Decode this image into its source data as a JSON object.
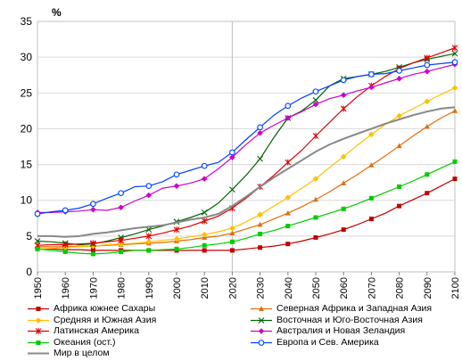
{
  "chart_data": {
    "type": "line",
    "title": "",
    "xlabel": "",
    "ylabel": "%",
    "ylim": [
      0,
      35
    ],
    "xlim": [
      1950,
      2100
    ],
    "yticks": [
      "0",
      "5",
      "10",
      "15",
      "20",
      "25",
      "30",
      "35"
    ],
    "xticks": [
      "1950",
      "1960",
      "1970",
      "1980",
      "1990",
      "2000",
      "2010",
      "2020",
      "2030",
      "2040",
      "2050",
      "2060",
      "2070",
      "2080",
      "2090",
      "2100"
    ],
    "grid": true,
    "reference_line_x": 2020,
    "legend_position": "bottom",
    "x": [
      1950,
      1955,
      1960,
      1965,
      1970,
      1975,
      1980,
      1985,
      1990,
      1995,
      2000,
      2005,
      2010,
      2015,
      2020,
      2025,
      2030,
      2035,
      2040,
      2045,
      2050,
      2055,
      2060,
      2065,
      2070,
      2075,
      2080,
      2085,
      2090,
      2095,
      2100
    ],
    "series": [
      {
        "name": "Африка южнее Сахары",
        "color": "#c00000",
        "marker": "square",
        "values": [
          3.2,
          3.2,
          3.1,
          3.1,
          3.0,
          3.0,
          3.0,
          3.0,
          3.0,
          3.0,
          3.0,
          3.0,
          3.0,
          3.0,
          3.0,
          3.2,
          3.4,
          3.6,
          3.9,
          4.3,
          4.8,
          5.3,
          5.9,
          6.6,
          7.4,
          8.2,
          9.2,
          10.1,
          11.0,
          12.0,
          13.0
        ]
      },
      {
        "name": "Северная Африка и Западная Азия",
        "color": "#e46c0a",
        "marker": "triangle",
        "values": [
          3.5,
          3.5,
          3.5,
          3.6,
          3.6,
          3.7,
          3.8,
          3.9,
          4.0,
          4.1,
          4.3,
          4.5,
          4.8,
          5.0,
          5.4,
          6.0,
          6.6,
          7.4,
          8.2,
          9.1,
          10.1,
          11.2,
          12.4,
          13.6,
          14.9,
          16.2,
          17.6,
          19.0,
          20.3,
          21.5,
          22.5
        ]
      },
      {
        "name": "Средняя  и Южная Азия",
        "color": "#ffc000",
        "marker": "diamond",
        "values": [
          3.2,
          3.3,
          3.4,
          3.5,
          3.6,
          3.8,
          3.9,
          4.0,
          4.2,
          4.4,
          4.6,
          4.9,
          5.2,
          5.6,
          6.1,
          7.0,
          8.0,
          9.2,
          10.4,
          11.7,
          13.0,
          14.6,
          16.1,
          17.7,
          19.2,
          20.6,
          21.8,
          22.8,
          23.8,
          24.8,
          25.7
        ]
      },
      {
        "name": "Восточная и Юго-Восточная Азия",
        "color": "#006400",
        "marker": "x",
        "values": [
          4.3,
          4.2,
          4.0,
          3.8,
          3.9,
          4.3,
          4.8,
          5.3,
          5.9,
          6.4,
          7.0,
          7.6,
          8.3,
          9.6,
          11.5,
          13.5,
          15.8,
          18.8,
          21.5,
          22.5,
          24.0,
          26.0,
          27.0,
          27.3,
          27.6,
          28.0,
          28.6,
          29.2,
          29.7,
          30.1,
          30.5
        ]
      },
      {
        "name": "Латинская Америка",
        "color": "#e00000",
        "marker": "asterisk",
        "values": [
          3.7,
          3.8,
          3.8,
          3.9,
          4.0,
          4.2,
          4.4,
          4.7,
          5.0,
          5.4,
          5.9,
          6.4,
          7.1,
          7.8,
          8.9,
          10.3,
          11.9,
          13.5,
          15.3,
          17.0,
          19.0,
          20.9,
          22.8,
          24.5,
          26.0,
          27.3,
          28.4,
          29.2,
          29.9,
          30.6,
          31.3
        ]
      },
      {
        "name": "Австралия и Новая Зеландия",
        "color": "#cc00cc",
        "marker": "diamond",
        "values": [
          8.3,
          8.3,
          8.4,
          8.5,
          8.7,
          8.6,
          9.0,
          9.9,
          10.7,
          11.7,
          12.0,
          12.4,
          13.0,
          14.4,
          16.0,
          17.8,
          19.4,
          20.5,
          21.5,
          22.4,
          23.4,
          24.2,
          24.7,
          25.3,
          25.8,
          26.4,
          27.0,
          27.6,
          28.0,
          28.5,
          29.0
        ]
      },
      {
        "name": "Океания (ост.)",
        "color": "#00cc00",
        "marker": "square",
        "values": [
          3.2,
          3.0,
          2.8,
          2.6,
          2.5,
          2.6,
          2.8,
          3.0,
          3.0,
          3.1,
          3.2,
          3.4,
          3.7,
          3.9,
          4.2,
          4.7,
          5.3,
          5.8,
          6.4,
          7.0,
          7.6,
          8.2,
          8.8,
          9.5,
          10.3,
          11.1,
          11.9,
          12.7,
          13.6,
          14.5,
          15.4
        ]
      },
      {
        "name": "Европа и Сев. Америка",
        "color": "#0040ff",
        "marker": "circle",
        "values": [
          8.1,
          8.4,
          8.6,
          8.9,
          9.5,
          10.3,
          11.0,
          11.9,
          12.0,
          12.6,
          13.6,
          14.2,
          14.8,
          15.3,
          16.7,
          18.5,
          20.2,
          21.9,
          23.2,
          24.3,
          25.2,
          26.0,
          26.8,
          27.3,
          27.6,
          27.7,
          28.1,
          28.5,
          28.9,
          29.1,
          29.3
        ]
      },
      {
        "name": "Мир в целом",
        "color": "#888888",
        "marker": "none",
        "values": [
          5.0,
          5.0,
          4.9,
          5.0,
          5.3,
          5.5,
          5.8,
          6.1,
          6.3,
          6.5,
          6.9,
          7.3,
          7.6,
          8.1,
          9.2,
          10.5,
          11.9,
          13.2,
          14.4,
          15.6,
          16.8,
          17.8,
          18.6,
          19.3,
          20.0,
          20.7,
          21.3,
          21.9,
          22.4,
          22.8,
          23.0
        ]
      }
    ]
  }
}
